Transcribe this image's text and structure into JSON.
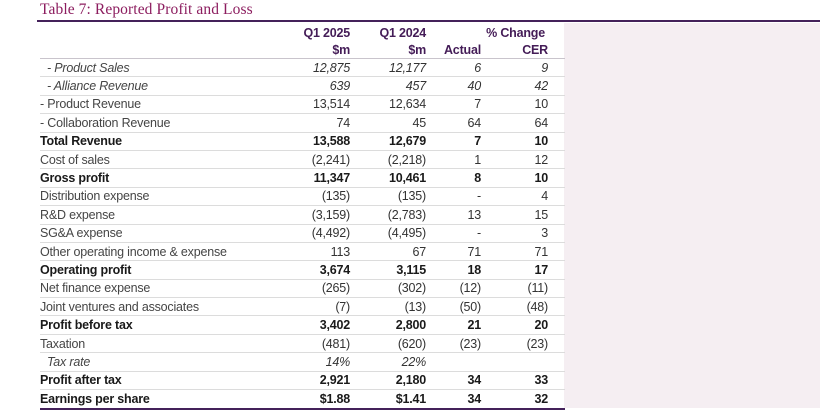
{
  "title": "Table 7: Reported Profit and Loss",
  "colors": {
    "title_text": "#8C1D5F",
    "rule": "#44215A",
    "header_text": "#441C57",
    "row_separator": "#DCDCDC",
    "side_panel_background": "#F5EEF2"
  },
  "table": {
    "header": {
      "col_q1_2025": "Q1 2025",
      "col_q1_2024": "Q1 2024",
      "col_pct_change": "% Change",
      "unit_q1_2025": "$m",
      "unit_q1_2024": "$m",
      "col_actual": "Actual",
      "col_cer": "CER"
    },
    "rows": [
      {
        "label": "- Product Sales",
        "style": "italic",
        "q1_2025": "12,875",
        "q1_2024": "12,177",
        "actual": "6",
        "cer": "9"
      },
      {
        "label": "- Alliance Revenue",
        "style": "italic",
        "q1_2025": "639",
        "q1_2024": "457",
        "actual": "40",
        "cer": "42"
      },
      {
        "label": "- Product Revenue",
        "style": "normal",
        "q1_2025": "13,514",
        "q1_2024": "12,634",
        "actual": "7",
        "cer": "10"
      },
      {
        "label": "- Collaboration Revenue",
        "style": "normal",
        "q1_2025": "74",
        "q1_2024": "45",
        "actual": "64",
        "cer": "64"
      },
      {
        "label": "Total Revenue",
        "style": "bold",
        "q1_2025": "13,588",
        "q1_2024": "12,679",
        "actual": "7",
        "cer": "10"
      },
      {
        "label": "Cost of sales",
        "style": "normal",
        "q1_2025": "(2,241)",
        "q1_2024": "(2,218)",
        "actual": "1",
        "cer": "12"
      },
      {
        "label": "Gross profit",
        "style": "bold",
        "q1_2025": "11,347",
        "q1_2024": "10,461",
        "actual": "8",
        "cer": "10"
      },
      {
        "label": "Distribution expense",
        "style": "normal",
        "q1_2025": "(135)",
        "q1_2024": "(135)",
        "actual": "-",
        "cer": "4"
      },
      {
        "label": "R&D expense",
        "style": "normal",
        "q1_2025": "(3,159)",
        "q1_2024": "(2,783)",
        "actual": "13",
        "cer": "15"
      },
      {
        "label": "SG&A expense",
        "style": "normal",
        "q1_2025": "(4,492)",
        "q1_2024": "(4,495)",
        "actual": "-",
        "cer": "3"
      },
      {
        "label": "Other operating income & expense",
        "style": "normal",
        "q1_2025": "113",
        "q1_2024": "67",
        "actual": "71",
        "cer": "71"
      },
      {
        "label": "Operating profit",
        "style": "bold",
        "q1_2025": "3,674",
        "q1_2024": "3,115",
        "actual": "18",
        "cer": "17"
      },
      {
        "label": "Net finance expense",
        "style": "normal",
        "q1_2025": "(265)",
        "q1_2024": "(302)",
        "actual": "(12)",
        "cer": "(11)"
      },
      {
        "label": "Joint ventures and associates",
        "style": "normal",
        "q1_2025": "(7)",
        "q1_2024": "(13)",
        "actual": "(50)",
        "cer": "(48)"
      },
      {
        "label": "Profit before tax",
        "style": "bold",
        "q1_2025": "3,402",
        "q1_2024": "2,800",
        "actual": "21",
        "cer": "20"
      },
      {
        "label": "Taxation",
        "style": "normal",
        "q1_2025": "(481)",
        "q1_2024": "(620)",
        "actual": "(23)",
        "cer": "(23)"
      },
      {
        "label": "Tax rate",
        "style": "italic",
        "q1_2025": "14%",
        "q1_2024": "22%",
        "actual": "",
        "cer": ""
      },
      {
        "label": "Profit after tax",
        "style": "bold",
        "q1_2025": "2,921",
        "q1_2024": "2,180",
        "actual": "34",
        "cer": "33"
      },
      {
        "label": "Earnings per share",
        "style": "bold",
        "q1_2025": "$1.88",
        "q1_2024": "$1.41",
        "actual": "34",
        "cer": "32"
      }
    ]
  }
}
